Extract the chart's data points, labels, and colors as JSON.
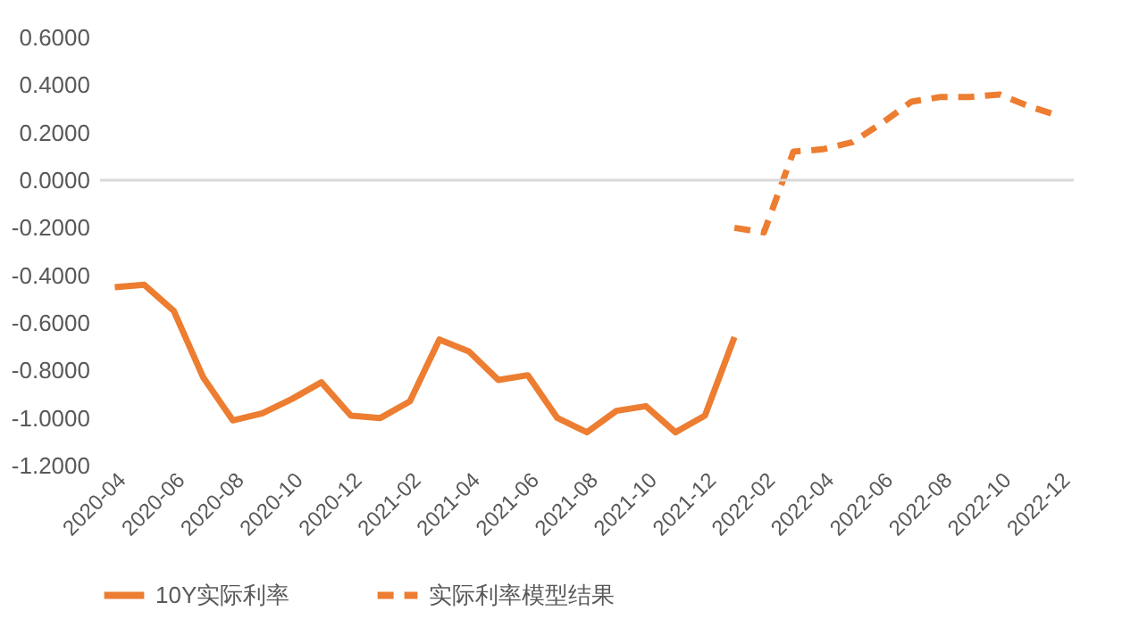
{
  "chart_data": {
    "type": "line",
    "categories": [
      "2020-04",
      null,
      "2020-06",
      null,
      "2020-08",
      null,
      "2020-10",
      null,
      "2020-12",
      null,
      "2021-02",
      null,
      "2021-04",
      null,
      "2021-06",
      null,
      "2021-08",
      null,
      "2021-10",
      null,
      "2021-12",
      null,
      "2022-02",
      null,
      "2022-04",
      null,
      "2022-06",
      null,
      "2022-08",
      null,
      "2022-10",
      null,
      "2022-12"
    ],
    "series": [
      {
        "name": "10Y实际利率",
        "color": "#ed7d31",
        "line_style": "solid",
        "values": [
          -0.45,
          -0.44,
          -0.55,
          -0.83,
          -1.01,
          -0.98,
          -0.92,
          -0.85,
          -0.99,
          -1.0,
          -0.93,
          -0.67,
          -0.72,
          -0.84,
          -0.82,
          -1.0,
          -1.06,
          -0.97,
          -0.95,
          -1.06,
          -0.99,
          -0.66,
          null,
          null,
          null,
          null,
          null,
          null,
          null,
          null,
          null,
          null,
          null
        ]
      },
      {
        "name": "实际利率模型结果",
        "color": "#ed7d31",
        "line_style": "dashed",
        "values": [
          null,
          null,
          null,
          null,
          null,
          null,
          null,
          null,
          null,
          null,
          null,
          null,
          null,
          null,
          null,
          null,
          null,
          null,
          null,
          null,
          null,
          -0.2,
          -0.22,
          0.12,
          0.13,
          0.16,
          0.24,
          0.33,
          0.35,
          0.35,
          0.36,
          0.31,
          0.27
        ]
      }
    ],
    "ylim": [
      -1.2,
      0.6
    ],
    "yticks": [
      {
        "value": -1.2,
        "label": "-1.2000"
      },
      {
        "value": -1.0,
        "label": "-1.0000"
      },
      {
        "value": -0.8,
        "label": "-0.8000"
      },
      {
        "value": -0.6,
        "label": "-0.6000"
      },
      {
        "value": -0.4,
        "label": "-0.4000"
      },
      {
        "value": -0.2,
        "label": "-0.2000"
      },
      {
        "value": 0,
        "label": "0.0000"
      },
      {
        "value": 0.2,
        "label": "0.2000"
      },
      {
        "value": 0.4,
        "label": "0.4000"
      },
      {
        "value": 0.6,
        "label": "0.6000"
      }
    ],
    "ref_lines": [
      {
        "axis": "y",
        "value": 0,
        "color": "#d9d9d9"
      }
    ],
    "grid": false,
    "legend": "bottom"
  }
}
